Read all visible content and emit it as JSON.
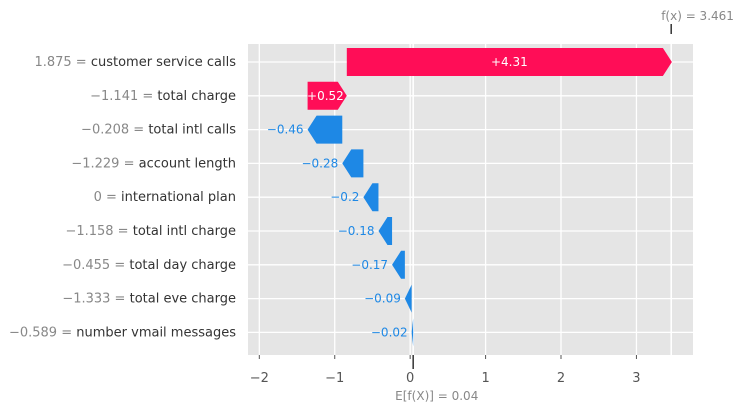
{
  "chart_data": {
    "type": "waterfall",
    "features": [
      {
        "value": "1.875",
        "name": "customer service calls",
        "contribution": 4.31,
        "label": "+4.31"
      },
      {
        "value": "−1.141",
        "name": "total charge",
        "contribution": 0.52,
        "label": "+0.52"
      },
      {
        "value": "−0.208",
        "name": "total intl calls",
        "contribution": -0.46,
        "label": "−0.46"
      },
      {
        "value": "−1.229",
        "name": "account length",
        "contribution": -0.28,
        "label": "−0.28"
      },
      {
        "value": "0",
        "name": "international plan",
        "contribution": -0.2,
        "label": "−0.2"
      },
      {
        "value": "−1.158",
        "name": "total intl charge",
        "contribution": -0.18,
        "label": "−0.18"
      },
      {
        "value": "−0.455",
        "name": "total day charge",
        "contribution": -0.17,
        "label": "−0.17"
      },
      {
        "value": "−1.333",
        "name": "total eve charge",
        "contribution": -0.09,
        "label": "−0.09"
      },
      {
        "value": "−0.589",
        "name": "number vmail messages",
        "contribution": -0.02,
        "label": "−0.02"
      }
    ],
    "base_value": 0.04,
    "output_value": 3.461,
    "fx_label": "f(x) = 3.461",
    "efx_label": "E[f(X)] = 0.04",
    "xlim": [
      -2.15,
      3.75
    ],
    "xticks": [
      -2,
      -1,
      0,
      1,
      2,
      3
    ],
    "xtick_labels": [
      "−2",
      "−1",
      "0",
      "1",
      "2",
      "3"
    ],
    "grid": true,
    "colors": {
      "positive": "#ff0d57",
      "negative": "#1e88e5",
      "background": "#e5e5e5",
      "grid": "#ffffff"
    }
  }
}
